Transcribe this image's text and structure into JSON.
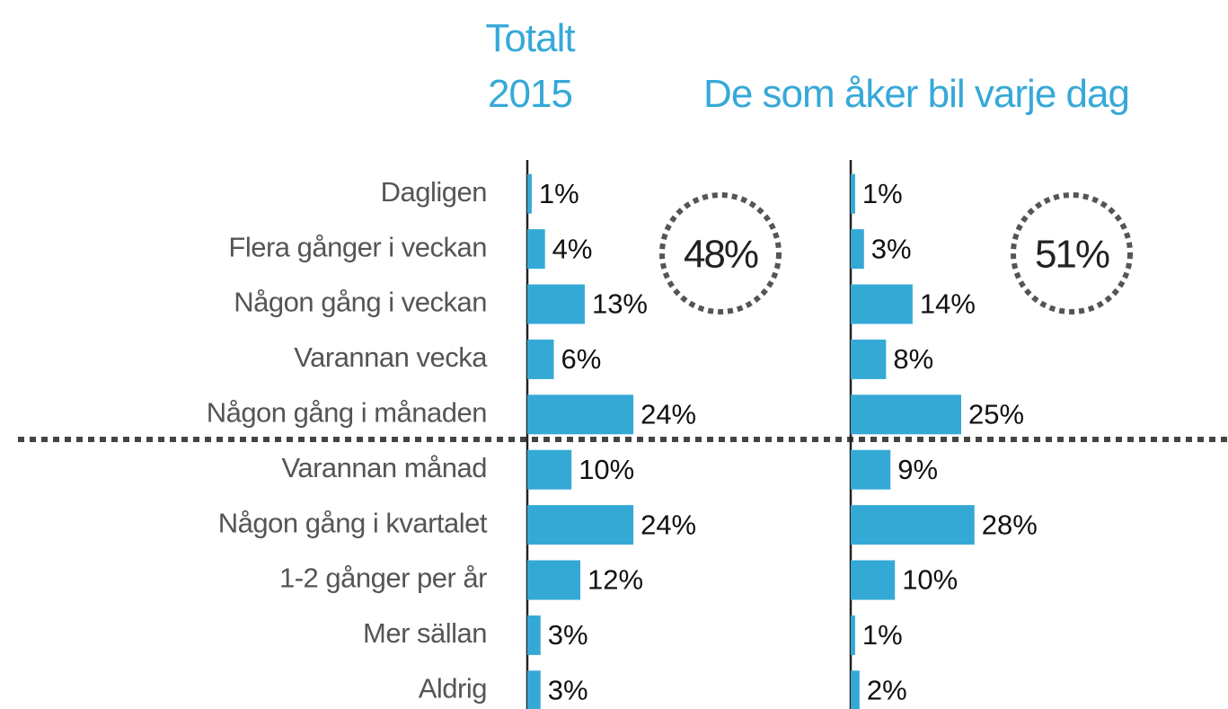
{
  "chart_data": {
    "type": "bar",
    "categories": [
      "Dagligen",
      "Flera gånger i veckan",
      "Någon gång i veckan",
      "Varannan vecka",
      "Någon gång i månaden",
      "Varannan månad",
      "Någon gång i kvartalet",
      "1-2 gånger per år",
      "Mer sällan",
      "Aldrig"
    ],
    "series": [
      {
        "name": "Totalt 2015",
        "color": "#35a9d6",
        "values": [
          1,
          4,
          13,
          6,
          24,
          10,
          24,
          12,
          3,
          3
        ],
        "value_labels": [
          "1%",
          "4%",
          "13%",
          "6%",
          "24%",
          "10%",
          "24%",
          "12%",
          "3%",
          "3%"
        ],
        "summary": {
          "value": 48,
          "label": "48%"
        }
      },
      {
        "name": "De som åker bil varje dag",
        "color": "#35a9d6",
        "values": [
          1,
          3,
          14,
          8,
          25,
          9,
          28,
          10,
          1,
          2
        ],
        "value_labels": [
          "1%",
          "3%",
          "14%",
          "8%",
          "25%",
          "9%",
          "28%",
          "10%",
          "1%",
          "2%"
        ],
        "summary": {
          "value": 51,
          "label": "51%"
        }
      }
    ]
  }
}
